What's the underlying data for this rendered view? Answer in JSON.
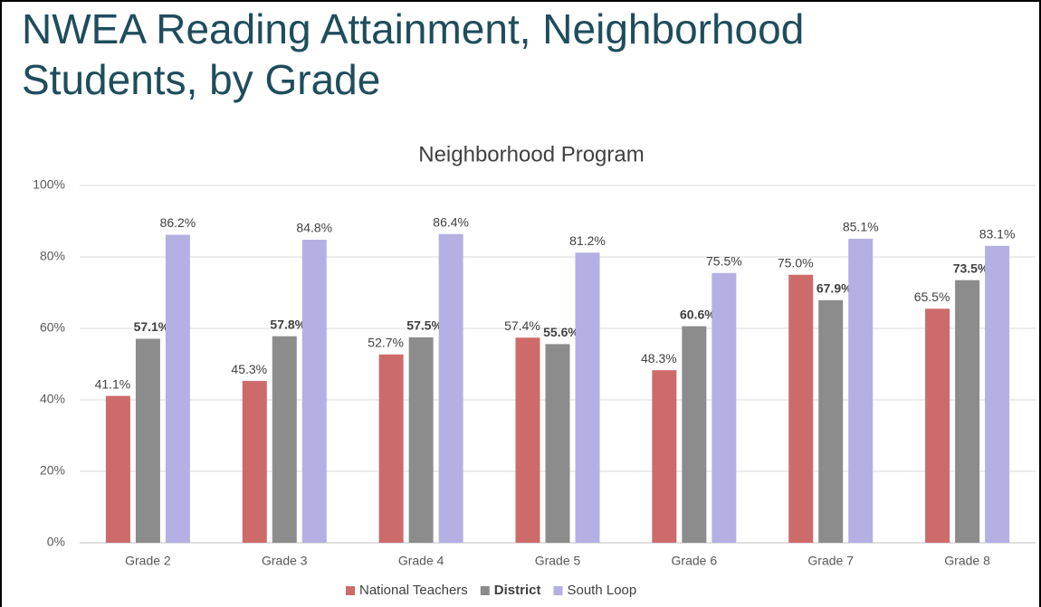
{
  "header": {
    "title_lines": [
      "NWEA Reading Attainment, Neighborhood",
      "Students, by Grade"
    ]
  },
  "chart_data": {
    "type": "bar",
    "title": "Neighborhood Program",
    "categories": [
      "Grade 2",
      "Grade 3",
      "Grade 4",
      "Grade 5",
      "Grade 6",
      "Grade 7",
      "Grade 8"
    ],
    "series": [
      {
        "name": "National Teachers",
        "color": "#cd6b6b",
        "values": [
          41.1,
          45.3,
          52.7,
          57.4,
          48.3,
          75.0,
          65.5
        ],
        "value_labels": [
          "41.1%",
          "45.3%",
          "52.7%",
          "57.4%",
          "48.3%",
          "75.0%",
          "65.5%"
        ]
      },
      {
        "name": "District",
        "color": "#8c8c8c",
        "bold": true,
        "values": [
          57.1,
          57.8,
          57.5,
          55.6,
          60.6,
          67.9,
          73.5
        ],
        "value_labels": [
          "57.1%",
          "57.8%",
          "57.5%",
          "55.6%",
          "60.6%",
          "67.9%",
          "73.5%"
        ]
      },
      {
        "name": "South Loop",
        "color": "#b4b0e4",
        "values": [
          86.2,
          84.8,
          86.4,
          81.2,
          75.5,
          85.1,
          83.1
        ],
        "value_labels": [
          "86.2%",
          "84.8%",
          "86.4%",
          "81.2%",
          "75.5%",
          "85.1%",
          "83.1%"
        ]
      }
    ],
    "ylim": [
      0,
      100
    ],
    "yticks": [
      {
        "value": 0,
        "label": "0%"
      },
      {
        "value": 20,
        "label": "20%"
      },
      {
        "value": 40,
        "label": "40%"
      },
      {
        "value": 60,
        "label": "60%"
      },
      {
        "value": 80,
        "label": "80%"
      },
      {
        "value": 100,
        "label": "100%"
      }
    ],
    "grid": true,
    "legend": "bottom"
  }
}
